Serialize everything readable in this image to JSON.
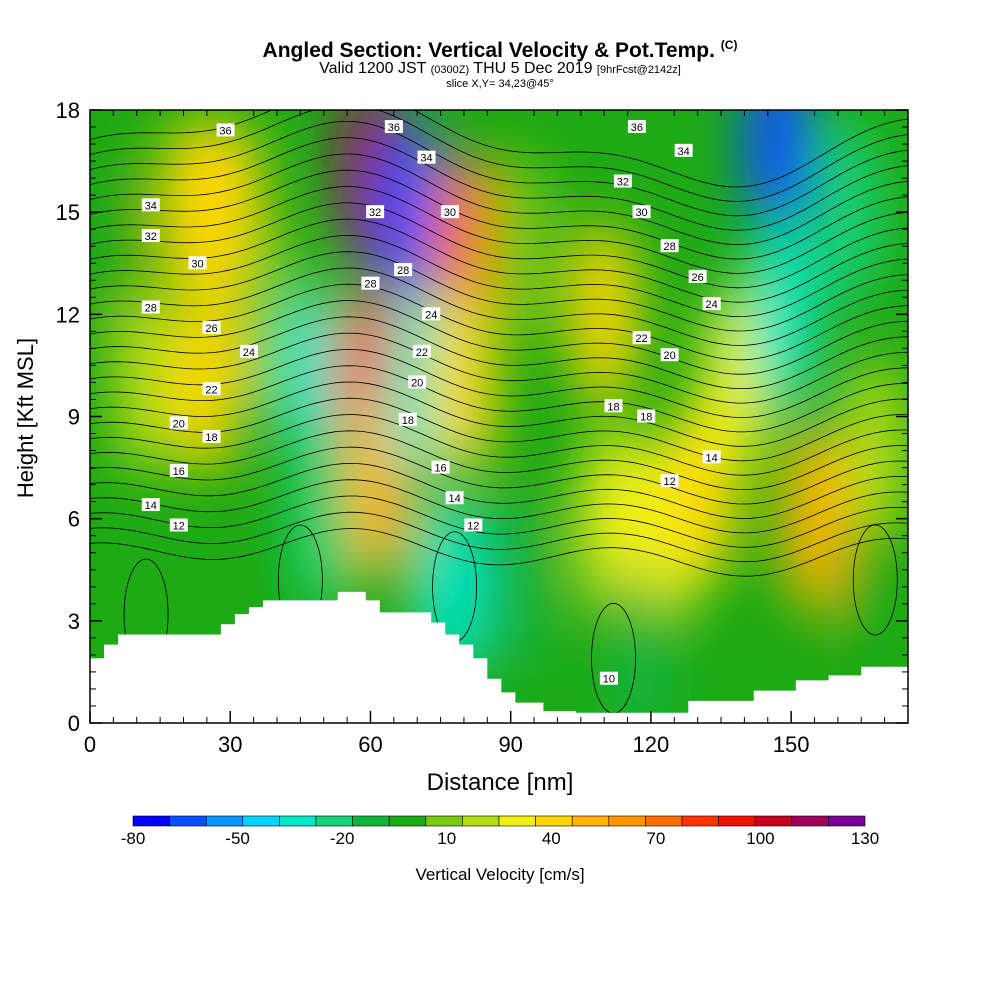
{
  "header": {
    "title": "Angled Section: Vertical Velocity & Pot.Temp.",
    "title_mark": "(C)",
    "subtitle_a": "Valid 1200 JST",
    "subtitle_b": "(0300Z)",
    "subtitle_c": "THU 5 Dec 2019",
    "subtitle_d": "[9hrFcst@2142z]",
    "slice": "slice X,Y= 34,23@45°"
  },
  "chart_data": {
    "type": "heatmap",
    "title": "Angled Section: Vertical Velocity & Pot.Temp.",
    "xlabel": "Distance [nm]",
    "ylabel": "Height [Kft MSL]",
    "xlim": [
      0,
      175
    ],
    "ylim": [
      0,
      18
    ],
    "xticks": [
      0,
      30,
      60,
      90,
      120,
      150
    ],
    "yticks": [
      0,
      3,
      6,
      9,
      12,
      15,
      18
    ],
    "colorbar": {
      "label": "Vertical Velocity [cm/s]",
      "tick_labels": [
        "-80",
        "-50",
        "-20",
        "10",
        "40",
        "70",
        "100",
        "130"
      ],
      "tick_values": [
        -80,
        -50,
        -20,
        10,
        40,
        70,
        100,
        130
      ],
      "colors": [
        "#0000ff",
        "#0a50ff",
        "#0a96ff",
        "#00d2ff",
        "#00e6c8",
        "#14d278",
        "#14b43c",
        "#1eaa14",
        "#78c814",
        "#b4dc14",
        "#f0f014",
        "#ffd700",
        "#ffb400",
        "#ff9600",
        "#ff6e00",
        "#ff3200",
        "#f01400",
        "#c8001e",
        "#a0005a",
        "#780096"
      ]
    },
    "velocity_field": [
      {
        "x": 3,
        "y": 14,
        "w": -10
      },
      {
        "x": 12,
        "y": 10,
        "w": 15
      },
      {
        "x": 22,
        "y": 15,
        "w": 35
      },
      {
        "x": 25,
        "y": 10,
        "w": 30
      },
      {
        "x": 30,
        "y": 15,
        "w": 35
      },
      {
        "x": 38,
        "y": 12,
        "w": 0
      },
      {
        "x": 48,
        "y": 10,
        "w": -35
      },
      {
        "x": 50,
        "y": 6,
        "w": -25
      },
      {
        "x": 60,
        "y": 16,
        "w": 100
      },
      {
        "x": 60,
        "y": 10,
        "w": 70
      },
      {
        "x": 62,
        "y": 7,
        "w": 40
      },
      {
        "x": 68,
        "y": 15,
        "w": -65
      },
      {
        "x": 70,
        "y": 10,
        "w": -40
      },
      {
        "x": 80,
        "y": 14,
        "w": 65
      },
      {
        "x": 80,
        "y": 10,
        "w": 35
      },
      {
        "x": 77,
        "y": 4,
        "w": -40
      },
      {
        "x": 92,
        "y": 14,
        "w": 0
      },
      {
        "x": 92,
        "y": 4,
        "w": -20
      },
      {
        "x": 110,
        "y": 12,
        "w": 30
      },
      {
        "x": 112,
        "y": 6,
        "w": 25
      },
      {
        "x": 118,
        "y": 2,
        "w": -20
      },
      {
        "x": 125,
        "y": 6,
        "w": 20
      },
      {
        "x": 132,
        "y": 7,
        "w": 35
      },
      {
        "x": 138,
        "y": 10,
        "w": 25
      },
      {
        "x": 147,
        "y": 17,
        "w": -70
      },
      {
        "x": 148,
        "y": 12,
        "w": -35
      },
      {
        "x": 155,
        "y": 6,
        "w": 40
      },
      {
        "x": 162,
        "y": 15,
        "w": -25
      },
      {
        "x": 168,
        "y": 8,
        "w": 15
      },
      {
        "x": 168,
        "y": 3,
        "w": -5
      }
    ],
    "terrain": {
      "x": [
        0,
        3,
        6,
        9,
        28,
        31,
        34,
        37,
        52,
        53,
        58,
        59,
        61,
        62,
        70,
        73,
        76,
        79,
        82,
        85,
        88,
        91,
        97,
        104,
        122,
        128,
        135,
        142,
        151,
        158,
        165,
        175
      ],
      "height": [
        1.9,
        2.3,
        2.6,
        2.6,
        2.9,
        3.2,
        3.4,
        3.6,
        3.6,
        3.85,
        3.85,
        3.6,
        3.6,
        3.25,
        3.25,
        2.95,
        2.6,
        2.3,
        1.9,
        1.3,
        0.9,
        0.6,
        0.35,
        0.3,
        0.3,
        0.65,
        0.65,
        0.95,
        1.25,
        1.4,
        1.65,
        1.65
      ]
    },
    "theta_contours": [
      10,
      12,
      14,
      16,
      18,
      20,
      22,
      24,
      26,
      28,
      30,
      32,
      34,
      36
    ],
    "contour_labels": [
      {
        "text": "36",
        "x": 29,
        "y": 17.4
      },
      {
        "text": "34",
        "x": 13,
        "y": 15.2
      },
      {
        "text": "32",
        "x": 13,
        "y": 14.3
      },
      {
        "text": "30",
        "x": 23,
        "y": 13.5
      },
      {
        "text": "28",
        "x": 13,
        "y": 12.2
      },
      {
        "text": "26",
        "x": 26,
        "y": 11.6
      },
      {
        "text": "24",
        "x": 34,
        "y": 10.9
      },
      {
        "text": "22",
        "x": 26,
        "y": 9.8
      },
      {
        "text": "20",
        "x": 19,
        "y": 8.8
      },
      {
        "text": "18",
        "x": 26,
        "y": 8.4
      },
      {
        "text": "16",
        "x": 19,
        "y": 7.4
      },
      {
        "text": "14",
        "x": 13,
        "y": 6.4
      },
      {
        "text": "12",
        "x": 19,
        "y": 5.8
      },
      {
        "text": "36",
        "x": 65,
        "y": 17.5
      },
      {
        "text": "34",
        "x": 72,
        "y": 16.6
      },
      {
        "text": "32",
        "x": 61,
        "y": 15.0
      },
      {
        "text": "30",
        "x": 77,
        "y": 15.0
      },
      {
        "text": "28",
        "x": 60,
        "y": 12.9
      },
      {
        "text": "28",
        "x": 67,
        "y": 13.3
      },
      {
        "text": "24",
        "x": 73,
        "y": 12.0
      },
      {
        "text": "22",
        "x": 71,
        "y": 10.9
      },
      {
        "text": "20",
        "x": 70,
        "y": 10.0
      },
      {
        "text": "18",
        "x": 68,
        "y": 8.9
      },
      {
        "text": "16",
        "x": 75,
        "y": 7.5
      },
      {
        "text": "14",
        "x": 78,
        "y": 6.6
      },
      {
        "text": "12",
        "x": 82,
        "y": 5.8
      },
      {
        "text": "36",
        "x": 117,
        "y": 17.5
      },
      {
        "text": "34",
        "x": 127,
        "y": 16.8
      },
      {
        "text": "32",
        "x": 114,
        "y": 15.9
      },
      {
        "text": "30",
        "x": 118,
        "y": 15.0
      },
      {
        "text": "28",
        "x": 124,
        "y": 14.0
      },
      {
        "text": "26",
        "x": 130,
        "y": 13.1
      },
      {
        "text": "24",
        "x": 133,
        "y": 12.3
      },
      {
        "text": "22",
        "x": 118,
        "y": 11.3
      },
      {
        "text": "20",
        "x": 124,
        "y": 10.8
      },
      {
        "text": "18",
        "x": 112,
        "y": 9.3
      },
      {
        "text": "18",
        "x": 119,
        "y": 9.0
      },
      {
        "text": "14",
        "x": 133,
        "y": 7.8
      },
      {
        "text": "12",
        "x": 124,
        "y": 7.1
      },
      {
        "text": "10",
        "x": 111,
        "y": 1.3
      }
    ]
  }
}
